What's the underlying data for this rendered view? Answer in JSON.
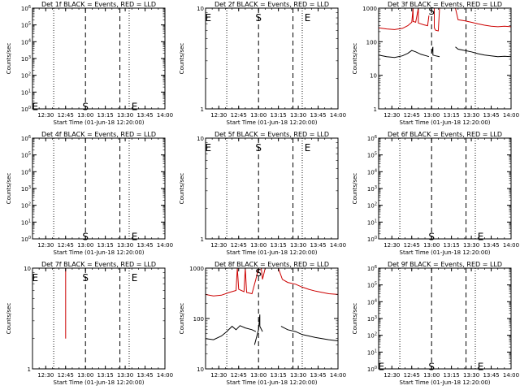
{
  "chart_data": [
    {
      "type": "line",
      "id": "det1f",
      "title": "Det 1f BLACK = Events, RED = LLD",
      "xlabel": "Start Time (01-Jun-18 12:20:00)",
      "ylabel": "Counts/sec",
      "xlim": [
        "12:20",
        "14:00"
      ],
      "x_ticks": [
        "12:30",
        "12:45",
        "13:00",
        "13:15",
        "13:30",
        "13:45",
        "14:00"
      ],
      "yscale": "log",
      "ylim": [
        1,
        1000000
      ],
      "y_ticks": [
        "10^0",
        "10^1",
        "10^2",
        "10^3",
        "10^4",
        "10^5",
        "10^6"
      ],
      "markers": [
        {
          "label": "E",
          "x": "12:22",
          "y": 1.3
        },
        {
          "label": "S",
          "x": "13:00",
          "y": 1.3
        },
        {
          "label": "E",
          "x": "13:37",
          "y": 1.3
        }
      ],
      "dotted_lines": [
        "12:36",
        "13:33"
      ],
      "dashed_lines": [
        "13:00",
        "13:26"
      ],
      "series": []
    },
    {
      "type": "line",
      "id": "det2f",
      "title": "Det 2f BLACK = Events, RED = LLD",
      "xlabel": "Start Time (01-Jun-18 12:20:00)",
      "ylabel": "Counts/sec",
      "xlim": [
        "12:20",
        "14:00"
      ],
      "x_ticks": [
        "12:30",
        "12:45",
        "13:00",
        "13:15",
        "13:30",
        "13:45",
        "14:00"
      ],
      "yscale": "log",
      "ylim": [
        1,
        10
      ],
      "y_ticks": [
        "1",
        "10"
      ],
      "markers": [
        {
          "label": "E",
          "x": "12:22",
          "y": 8
        },
        {
          "label": "S",
          "x": "13:00",
          "y": 8
        },
        {
          "label": "E",
          "x": "13:37",
          "y": 8
        }
      ],
      "dotted_lines": [
        "12:36",
        "13:33"
      ],
      "dashed_lines": [
        "13:00",
        "13:26"
      ],
      "series": []
    },
    {
      "type": "line",
      "id": "det3f",
      "title": "Det 3f BLACK = Events, RED = LLD",
      "xlabel": "Start Time (01-Jun-18 12:20:00)",
      "ylabel": "Counts/sec",
      "xlim": [
        "12:20",
        "14:00"
      ],
      "x_ticks": [
        "12:30",
        "12:45",
        "13:00",
        "13:15",
        "13:30",
        "13:45",
        "14:00"
      ],
      "yscale": "log",
      "ylim": [
        1,
        1000
      ],
      "y_ticks": [
        "1",
        "10",
        "100",
        "1000"
      ],
      "markers": [
        {
          "label": "S",
          "x": "13:00",
          "y": 800
        }
      ],
      "dotted_lines": [
        "12:36",
        "13:33"
      ],
      "dashed_lines": [
        "13:00",
        "13:26"
      ],
      "series": [
        {
          "color": "#cc0000",
          "segments": [
            [
              [
                "12:20",
                260
              ],
              [
                "12:26",
                240
              ],
              [
                "12:32",
                230
              ],
              [
                "12:38",
                250
              ],
              [
                "12:42",
                300
              ],
              [
                "12:45",
                380
              ],
              [
                "12:46",
                1000
              ],
              [
                "12:46",
                400
              ],
              [
                "12:48",
                380
              ],
              [
                "12:50",
                1000
              ],
              [
                "12:50",
                360
              ],
              [
                "12:54",
                320
              ],
              [
                "12:57",
                300
              ],
              [
                "12:58",
                600
              ]
            ],
            [
              [
                "13:02",
                1000
              ],
              [
                "13:02",
                260
              ],
              [
                "13:03",
                220
              ],
              [
                "13:05",
                210
              ],
              [
                "13:06",
                1000
              ]
            ],
            [
              [
                "13:18",
                1000
              ],
              [
                "13:20",
                450
              ],
              [
                "13:25",
                420
              ],
              [
                "13:30",
                380
              ],
              [
                "13:35",
                340
              ],
              [
                "13:40",
                310
              ],
              [
                "13:45",
                290
              ],
              [
                "13:50",
                280
              ],
              [
                "13:55",
                290
              ],
              [
                "14:00",
                280
              ]
            ]
          ]
        },
        {
          "color": "#000000",
          "segments": [
            [
              [
                "12:20",
                40
              ],
              [
                "12:26",
                36
              ],
              [
                "12:32",
                34
              ],
              [
                "12:38",
                38
              ],
              [
                "12:42",
                45
              ],
              [
                "12:45",
                55
              ],
              [
                "12:48",
                50
              ],
              [
                "12:52",
                42
              ],
              [
                "12:56",
                38
              ],
              [
                "12:58",
                36
              ]
            ],
            [
              [
                "13:00",
                45
              ],
              [
                "13:01",
                70
              ],
              [
                "13:01",
                40
              ],
              [
                "13:03",
                38
              ],
              [
                "13:06",
                36
              ]
            ],
            [
              [
                "13:18",
                70
              ],
              [
                "13:20",
                60
              ],
              [
                "13:25",
                55
              ],
              [
                "13:30",
                50
              ],
              [
                "13:35",
                44
              ],
              [
                "13:40",
                40
              ],
              [
                "13:45",
                38
              ],
              [
                "13:50",
                36
              ],
              [
                "13:55",
                37
              ],
              [
                "14:00",
                36
              ]
            ]
          ]
        }
      ]
    },
    {
      "type": "line",
      "id": "det4f",
      "title": "Det 4f BLACK = Events, RED = LLD",
      "xlabel": "Start Time (01-Jun-18 12:20:00)",
      "ylabel": "Counts/sec",
      "xlim": [
        "12:20",
        "14:00"
      ],
      "x_ticks": [
        "12:30",
        "12:45",
        "13:00",
        "13:15",
        "13:30",
        "13:45",
        "14:00"
      ],
      "yscale": "log",
      "ylim": [
        1,
        1000000
      ],
      "y_ticks": [
        "10^0",
        "10^1",
        "10^2",
        "10^3",
        "10^4",
        "10^5",
        "10^6"
      ],
      "markers": [
        {
          "label": "S",
          "x": "13:00",
          "y": 1.3
        },
        {
          "label": "E",
          "x": "13:37",
          "y": 1.3
        }
      ],
      "dotted_lines": [
        "12:36",
        "13:33"
      ],
      "dashed_lines": [
        "13:00",
        "13:26"
      ],
      "series": []
    },
    {
      "type": "line",
      "id": "det5f",
      "title": "Det 5f BLACK = Events, RED = LLD",
      "xlabel": "Start Time (01-Jun-18 12:20:00)",
      "ylabel": "Counts/sec",
      "xlim": [
        "12:20",
        "14:00"
      ],
      "x_ticks": [
        "12:30",
        "12:45",
        "13:00",
        "13:15",
        "13:30",
        "13:45",
        "14:00"
      ],
      "yscale": "log",
      "ylim": [
        1,
        10
      ],
      "y_ticks": [
        "1",
        "10"
      ],
      "markers": [
        {
          "label": "E",
          "x": "12:22",
          "y": 8
        },
        {
          "label": "S",
          "x": "13:00",
          "y": 8
        },
        {
          "label": "E",
          "x": "13:37",
          "y": 8
        }
      ],
      "dotted_lines": [
        "12:36",
        "13:33"
      ],
      "dashed_lines": [
        "13:00",
        "13:26"
      ],
      "series": []
    },
    {
      "type": "line",
      "id": "det6f",
      "title": "Det 6f BLACK = Events, RED = LLD",
      "xlabel": "Start Time (01-Jun-18 12:20:00)",
      "ylabel": "Counts/sec",
      "xlim": [
        "12:20",
        "14:00"
      ],
      "x_ticks": [
        "12:30",
        "12:45",
        "13:00",
        "13:15",
        "13:30",
        "13:45",
        "14:00"
      ],
      "yscale": "log",
      "ylim": [
        1,
        1000000
      ],
      "y_ticks": [
        "10^0",
        "10^1",
        "10^2",
        "10^3",
        "10^4",
        "10^5",
        "10^6"
      ],
      "markers": [
        {
          "label": "S",
          "x": "13:00",
          "y": 1.3
        },
        {
          "label": "E",
          "x": "13:37",
          "y": 1.3
        }
      ],
      "dotted_lines": [
        "12:36",
        "13:33"
      ],
      "dashed_lines": [
        "13:00",
        "13:26"
      ],
      "series": []
    },
    {
      "type": "line",
      "id": "det7f",
      "title": "Det 7f BLACK = Events, RED = LLD",
      "xlabel": "Start Time (01-Jun-18 12:20:00)",
      "ylabel": "Counts/sec",
      "xlim": [
        "12:20",
        "14:00"
      ],
      "x_ticks": [
        "12:30",
        "12:45",
        "13:00",
        "13:15",
        "13:30",
        "13:45",
        "14:00"
      ],
      "yscale": "log",
      "ylim": [
        1,
        10
      ],
      "y_ticks": [
        "1",
        "10"
      ],
      "markers": [
        {
          "label": "E",
          "x": "12:22",
          "y": 8
        },
        {
          "label": "S",
          "x": "13:00",
          "y": 8
        },
        {
          "label": "E",
          "x": "13:37",
          "y": 8
        }
      ],
      "dotted_lines": [
        "12:36",
        "13:33"
      ],
      "dashed_lines": [
        "13:00",
        "13:26"
      ],
      "series": [
        {
          "color": "#cc0000",
          "segments": [
            [
              [
                "12:45",
                2
              ],
              [
                "12:45",
                10
              ]
            ]
          ]
        }
      ]
    },
    {
      "type": "line",
      "id": "det8f",
      "title": "Det 8f BLACK = Events, RED = LLD",
      "xlabel": "Start Time (01-Jun-18 12:20:00)",
      "ylabel": "Counts/sec",
      "xlim": [
        "12:20",
        "14:00"
      ],
      "x_ticks": [
        "12:30",
        "12:45",
        "13:00",
        "13:15",
        "13:30",
        "13:45",
        "14:00"
      ],
      "yscale": "log",
      "ylim": [
        10,
        1000
      ],
      "y_ticks": [
        "10",
        "100",
        "1000"
      ],
      "markers": [
        {
          "label": "S",
          "x": "13:00",
          "y": 800
        }
      ],
      "dotted_lines": [
        "12:36",
        "13:33"
      ],
      "dashed_lines": [
        "13:00",
        "13:26"
      ],
      "series": [
        {
          "color": "#cc0000",
          "segments": [
            [
              [
                "12:20",
                300
              ],
              [
                "12:26",
                280
              ],
              [
                "12:32",
                290
              ],
              [
                "12:38",
                330
              ],
              [
                "12:43",
                360
              ],
              [
                "12:44",
                1000
              ],
              [
                "12:45",
                380
              ],
              [
                "12:49",
                340
              ],
              [
                "12:50",
                1000
              ],
              [
                "12:51",
                330
              ],
              [
                "12:55",
                310
              ],
              [
                "12:58",
                600
              ],
              [
                "13:00",
                1000
              ]
            ],
            [
              [
                "13:02",
                1000
              ],
              [
                "13:03",
                600
              ],
              [
                "13:05",
                1000
              ]
            ],
            [
              [
                "13:15",
                1000
              ],
              [
                "13:18",
                600
              ],
              [
                "13:22",
                520
              ],
              [
                "13:28",
                480
              ],
              [
                "13:33",
                420
              ],
              [
                "13:38",
                380
              ],
              [
                "13:43",
                350
              ],
              [
                "13:48",
                330
              ],
              [
                "13:53",
                310
              ],
              [
                "14:00",
                300
              ]
            ]
          ]
        },
        {
          "color": "#000000",
          "segments": [
            [
              [
                "12:20",
                40
              ],
              [
                "12:26",
                38
              ],
              [
                "12:32",
                45
              ],
              [
                "12:36",
                55
              ],
              [
                "12:40",
                70
              ],
              [
                "12:43",
                60
              ],
              [
                "12:46",
                72
              ],
              [
                "12:50",
                65
              ],
              [
                "12:55",
                60
              ],
              [
                "12:58",
                55
              ]
            ],
            [
              [
                "12:57",
                30
              ],
              [
                "13:00",
                60
              ],
              [
                "13:01",
                120
              ],
              [
                "13:01",
                70
              ],
              [
                "13:03",
                55
              ]
            ],
            [
              [
                "13:17",
                70
              ],
              [
                "13:22",
                60
              ],
              [
                "13:28",
                55
              ],
              [
                "13:33",
                48
              ],
              [
                "13:38",
                45
              ],
              [
                "13:43",
                42
              ],
              [
                "13:48",
                40
              ],
              [
                "13:53",
                38
              ],
              [
                "14:00",
                36
              ]
            ]
          ]
        }
      ]
    },
    {
      "type": "line",
      "id": "det9f",
      "title": "Det 9f BLACK = Events, RED = LLD",
      "xlabel": "Start Time (01-Jun-18 12:20:00)",
      "ylabel": "Counts/sec",
      "xlim": [
        "12:20",
        "14:00"
      ],
      "x_ticks": [
        "12:30",
        "12:45",
        "13:00",
        "13:15",
        "13:30",
        "13:45",
        "14:00"
      ],
      "yscale": "log",
      "ylim": [
        1,
        1000000
      ],
      "y_ticks": [
        "10^0",
        "10^1",
        "10^2",
        "10^3",
        "10^4",
        "10^5",
        "10^6"
      ],
      "markers": [
        {
          "label": "E",
          "x": "12:22",
          "y": 1.3
        },
        {
          "label": "S",
          "x": "13:00",
          "y": 1.3
        },
        {
          "label": "E",
          "x": "13:37",
          "y": 1.3
        }
      ],
      "dotted_lines": [
        "12:36",
        "13:33"
      ],
      "dashed_lines": [
        "13:00",
        "13:26"
      ],
      "series": []
    }
  ]
}
